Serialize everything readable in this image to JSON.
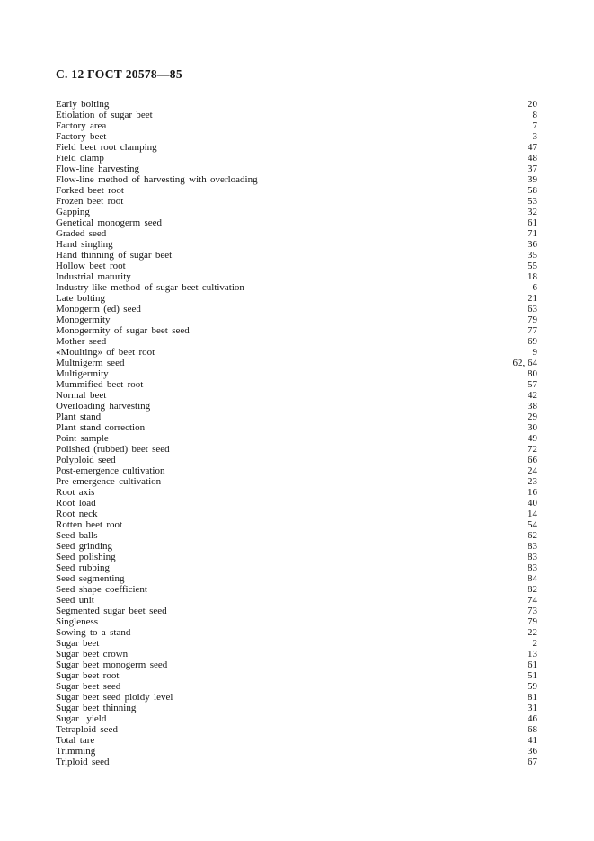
{
  "header": {
    "title": "С. 12 ГОСТ 20578—85"
  },
  "index": {
    "entries": [
      {
        "term": "Early bolting",
        "page": "20"
      },
      {
        "term": "Etiolation of sugar beet",
        "page": "8"
      },
      {
        "term": "Factory area",
        "page": "7"
      },
      {
        "term": "Factory beet",
        "page": "3"
      },
      {
        "term": "Field beet root clamping",
        "page": "47"
      },
      {
        "term": "Field clamp",
        "page": "48"
      },
      {
        "term": "Flow-line harvesting",
        "page": "37"
      },
      {
        "term": "Flow-line method of harvesting with overloading",
        "page": "39"
      },
      {
        "term": "Forked beet root",
        "page": "58"
      },
      {
        "term": "Frozen beet root",
        "page": "53"
      },
      {
        "term": "Gapping",
        "page": "32"
      },
      {
        "term": "Genetical monogerm seed",
        "page": "61"
      },
      {
        "term": "Graded seed",
        "page": "71"
      },
      {
        "term": "Hand singling",
        "page": "36"
      },
      {
        "term": "Hand thinning of sugar beet",
        "page": "35"
      },
      {
        "term": "Hollow beet root",
        "page": "55"
      },
      {
        "term": "Industrial maturity",
        "page": "18"
      },
      {
        "term": "Industry-like method of sugar beet cultivation",
        "page": "6"
      },
      {
        "term": "Late bolting",
        "page": "21"
      },
      {
        "term": "Monogerm (ed) seed",
        "page": "63"
      },
      {
        "term": "Monogermity",
        "page": "79"
      },
      {
        "term": "Monogermity of sugar beet seed",
        "page": "77"
      },
      {
        "term": "Mother seed",
        "page": "69"
      },
      {
        "term": "«Moulting» of beet root",
        "page": "9"
      },
      {
        "term": "Multnigerm seed",
        "page": "62, 64"
      },
      {
        "term": "Multigermity",
        "page": "80"
      },
      {
        "term": "Mummified beet root",
        "page": "57"
      },
      {
        "term": "Normal beet",
        "page": "42"
      },
      {
        "term": "Overloading harvesting",
        "page": "38"
      },
      {
        "term": "Plant stand",
        "page": "29"
      },
      {
        "term": "Plant stand correction",
        "page": "30"
      },
      {
        "term": "Point sample",
        "page": "49"
      },
      {
        "term": "Polished (rubbed) beet seed",
        "page": "72"
      },
      {
        "term": "Polyploid seed",
        "page": "66"
      },
      {
        "term": "Post-emergence cultivation",
        "page": "24"
      },
      {
        "term": "Pre-emergence cultivation",
        "page": "23"
      },
      {
        "term": "Root axis",
        "page": "16"
      },
      {
        "term": "Root load",
        "page": "40"
      },
      {
        "term": "Root neck",
        "page": "14"
      },
      {
        "term": "Rotten beet root",
        "page": "54"
      },
      {
        "term": "Seed balls",
        "page": "62"
      },
      {
        "term": "Seed grinding",
        "page": "83"
      },
      {
        "term": "Seed polishing",
        "page": "83"
      },
      {
        "term": "Seed rubbing",
        "page": "83"
      },
      {
        "term": "Seed segmenting",
        "page": "84"
      },
      {
        "term": "Seed shape coefficient",
        "page": "82"
      },
      {
        "term": "Seed unit",
        "page": "74"
      },
      {
        "term": "Segmented sugar beet seed",
        "page": "73"
      },
      {
        "term": "Singleness",
        "page": "79"
      },
      {
        "term": "Sowing to a stand",
        "page": "22"
      },
      {
        "term": "Sugar beet",
        "page": "2"
      },
      {
        "term": "Sugar beet crown",
        "page": "13"
      },
      {
        "term": "Sugar beet monogerm seed",
        "page": "61"
      },
      {
        "term": "Sugar beet root",
        "page": "51"
      },
      {
        "term": "Sugar beet seed",
        "page": "59"
      },
      {
        "term": "Sugar beet seed ploidy level",
        "page": "81"
      },
      {
        "term": "Sugar beet thinning",
        "page": "31"
      },
      {
        "term": "Sugar  yield",
        "page": "46"
      },
      {
        "term": "Tetraploid seed",
        "page": "68"
      },
      {
        "term": "Total tare",
        "page": "41"
      },
      {
        "term": "Trimming",
        "page": "36"
      },
      {
        "term": "Triploid seed",
        "page": "67"
      }
    ]
  }
}
